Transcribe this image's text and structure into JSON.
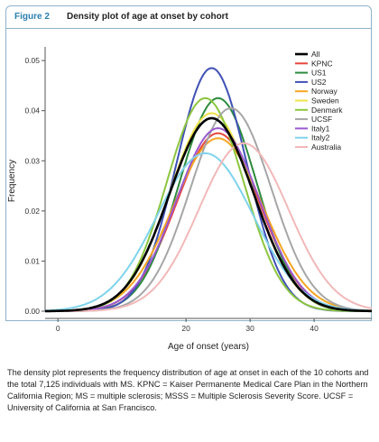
{
  "figure": {
    "label": "Figure 2",
    "title": "Density plot of age at onset by cohort",
    "caption": "The density plot represents the frequency distribution of age at onset in each of the 10 cohorts and the total 7,125 individuals with MS. KPNC = Kaiser Permanente Medical Care Plan in the Northern California Region; MS = multiple sclerosis; MSSS = Multiple Sclerosis Severity Score. UCSF = University of California at San Francisco."
  },
  "chart_data": {
    "type": "line",
    "xlabel": "Age of onset (years)",
    "ylabel": "Frequency",
    "xlim": [
      -2,
      49
    ],
    "ylim": [
      0,
      0.052
    ],
    "x_ticks": [
      0,
      20,
      30,
      40
    ],
    "y_ticks": [
      0.0,
      0.01,
      0.02,
      0.03,
      0.04,
      0.05
    ],
    "y_tick_labels": [
      "0.00",
      "0.01",
      "0.02",
      "0.03",
      "0.04",
      "0.05"
    ],
    "grid": false,
    "legend_position": "top-right",
    "series": [
      {
        "name": "All",
        "color": "#000000",
        "peak_x": 24,
        "peak_y": 0.0385,
        "sd": 6.6
      },
      {
        "name": "KPNC",
        "color": "#e8453c",
        "peak_x": 25,
        "peak_y": 0.0355,
        "sd": 6.5
      },
      {
        "name": "US1",
        "color": "#2e8b3e",
        "peak_x": 25,
        "peak_y": 0.0425,
        "sd": 6.0
      },
      {
        "name": "US2",
        "color": "#3f51b5",
        "peak_x": 24,
        "peak_y": 0.0485,
        "sd": 5.5
      },
      {
        "name": "Norway",
        "color": "#f5a623",
        "peak_x": 25,
        "peak_y": 0.0345,
        "sd": 7.0
      },
      {
        "name": "Sweden",
        "color": "#f0e24a",
        "peak_x": 24,
        "peak_y": 0.0395,
        "sd": 6.5
      },
      {
        "name": "Denmark",
        "color": "#8cc63f",
        "peak_x": 23,
        "peak_y": 0.0425,
        "sd": 6.0
      },
      {
        "name": "UCSF",
        "color": "#a6a6a6",
        "peak_x": 27,
        "peak_y": 0.0405,
        "sd": 6.3
      },
      {
        "name": "Italy1",
        "color": "#9b59d0",
        "peak_x": 25,
        "peak_y": 0.0365,
        "sd": 6.5
      },
      {
        "name": "Italy2",
        "color": "#7fd3ec",
        "peak_x": 23,
        "peak_y": 0.0315,
        "sd": 7.5
      },
      {
        "name": "Australia",
        "color": "#f2b8b8",
        "peak_x": 29,
        "peak_y": 0.0335,
        "sd": 7.0
      }
    ]
  }
}
